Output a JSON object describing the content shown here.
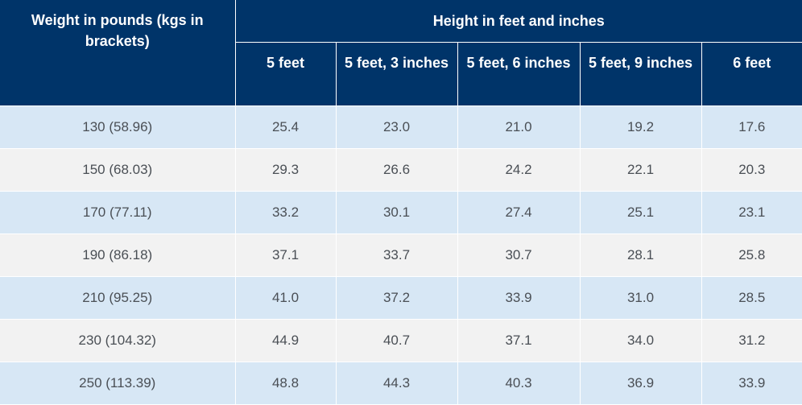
{
  "table": {
    "row_header_label": "Weight in pounds (kgs in brackets)",
    "group_header_label": "Height in feet and inches",
    "columns": [
      "5 feet",
      "5 feet, 3 inches",
      "5 feet, 6 inches",
      "5 feet, 9 inches",
      "6 feet"
    ],
    "rows": [
      {
        "weight": "130 (58.96)",
        "values": [
          "25.4",
          "23.0",
          "21.0",
          "19.2",
          "17.6"
        ]
      },
      {
        "weight": "150 (68.03)",
        "values": [
          "29.3",
          "26.6",
          "24.2",
          "22.1",
          "20.3"
        ]
      },
      {
        "weight": "170 (77.11)",
        "values": [
          "33.2",
          "30.1",
          "27.4",
          "25.1",
          "23.1"
        ]
      },
      {
        "weight": "190 (86.18)",
        "values": [
          "37.1",
          "33.7",
          "30.7",
          "28.1",
          "25.8"
        ]
      },
      {
        "weight": "210 (95.25)",
        "values": [
          "41.0",
          "37.2",
          "33.9",
          "31.0",
          "28.5"
        ]
      },
      {
        "weight": "230 (104.32)",
        "values": [
          "44.9",
          "40.7",
          "37.1",
          "34.0",
          "31.2"
        ]
      },
      {
        "weight": "250 (113.39)",
        "values": [
          "48.8",
          "44.3",
          "40.3",
          "36.9",
          "33.9"
        ]
      }
    ]
  },
  "colors": {
    "header_bg": "#003469",
    "header_text": "#ffffff",
    "row_odd_bg": "#d7e7f5",
    "row_even_bg": "#f2f2f2",
    "body_text": "#4a4f55"
  }
}
